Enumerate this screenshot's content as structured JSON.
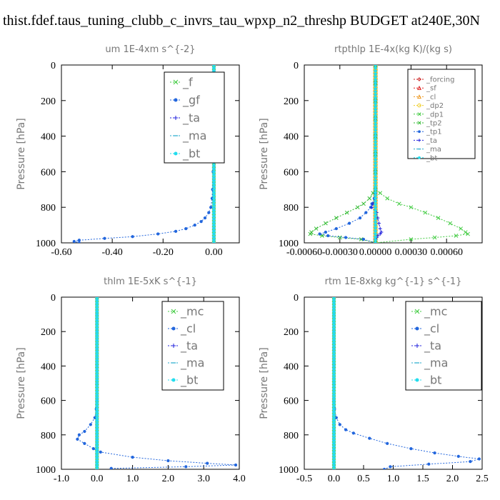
{
  "figure": {
    "title": "thist.fdef.taus_tuning_clubb_c_invrs_tau_wpxp_n2_threshp  BUDGET at240E,30N"
  },
  "chart_data": [
    {
      "type": "line",
      "title": "um  1E-4xm s^{-2}",
      "ylabel": "Pressure [hPa]",
      "xlabel": "",
      "xlim": [
        -0.6,
        0.1
      ],
      "ylim": [
        1000,
        0
      ],
      "xticks": [
        -0.6,
        -0.4,
        -0.2,
        0.0
      ],
      "xtick_labels": [
        "-0.60",
        "-0.40",
        "-0.20",
        "0.00"
      ],
      "yticks": [
        0,
        200,
        400,
        600,
        800,
        1000
      ],
      "legend_loc": "top-right",
      "y": [
        0,
        100,
        200,
        300,
        400,
        500,
        600,
        700,
        750,
        800,
        830,
        860,
        880,
        900,
        920,
        935,
        950,
        965,
        975,
        985,
        992,
        1000
      ],
      "series": [
        {
          "name": "_f",
          "color": "#44cc44",
          "marker": "x",
          "values": [
            0,
            0,
            0,
            0,
            0,
            0,
            0,
            0,
            0,
            0,
            0,
            0,
            0,
            0,
            0,
            0,
            0,
            0,
            0,
            0,
            0,
            0
          ]
        },
        {
          "name": "_gf",
          "color": "#2266dd",
          "marker": "dot",
          "values": [
            0,
            0,
            0,
            0,
            -0.001,
            -0.002,
            -0.003,
            -0.005,
            -0.007,
            -0.012,
            -0.02,
            -0.035,
            -0.05,
            -0.075,
            -0.11,
            -0.15,
            -0.22,
            -0.32,
            -0.43,
            -0.53,
            -0.55,
            -0.53
          ]
        },
        {
          "name": "_ta",
          "color": "#2222dd",
          "marker": "plus",
          "values": [
            0,
            0,
            0,
            0,
            0,
            0,
            0,
            0,
            0,
            0,
            0,
            0,
            0,
            0,
            0,
            0,
            0,
            0,
            0,
            0,
            0,
            0
          ]
        },
        {
          "name": "_ma",
          "color": "#22aacc",
          "marker": "dash",
          "values": [
            0,
            0,
            0,
            0,
            0,
            0,
            0,
            0,
            0,
            0,
            0,
            0,
            0,
            0,
            0,
            0,
            0,
            0,
            0,
            0,
            0,
            0
          ]
        },
        {
          "name": "_bt",
          "color": "#22ddee",
          "marker": "dot",
          "values": [
            0,
            0,
            0,
            0,
            0,
            0,
            0,
            0,
            0,
            0,
            0,
            0,
            0,
            0,
            0,
            0,
            0,
            0,
            0,
            0,
            0,
            0
          ]
        }
      ]
    },
    {
      "type": "line",
      "title": "rtpthlp  1E-4x(kg K)/(kg s)",
      "ylabel": "Pressure [hPa]",
      "xlabel": "",
      "xlim": [
        -0.0006,
        0.0009
      ],
      "ylim": [
        1000,
        0
      ],
      "xticks": [
        -0.0006,
        -0.0003,
        0.0,
        0.0003,
        0.0006
      ],
      "xtick_labels": [
        "-0.00060",
        "-0.00030",
        "0.00000",
        "0.00030",
        "0.00060"
      ],
      "yticks": [
        0,
        200,
        400,
        600,
        800,
        1000
      ],
      "legend_loc": "top-right",
      "y": [
        0,
        100,
        200,
        300,
        400,
        500,
        600,
        700,
        720,
        750,
        780,
        800,
        830,
        860,
        890,
        920,
        940,
        950,
        960,
        970,
        980,
        1000
      ],
      "series": [
        {
          "name": "_forcing",
          "color": "#cc2222",
          "marker": "diamond",
          "values": [
            0,
            0,
            0,
            0,
            0,
            0,
            0,
            0,
            0,
            0,
            0,
            0,
            0,
            0,
            0,
            0,
            0,
            0,
            0,
            0,
            0,
            0
          ]
        },
        {
          "name": "_sf",
          "color": "#dd2222",
          "marker": "tri",
          "values": [
            0,
            0,
            0,
            0,
            0,
            0,
            0,
            0,
            0,
            0,
            0,
            0,
            0,
            0,
            0,
            0,
            0,
            0,
            0,
            0,
            0,
            0
          ]
        },
        {
          "name": "_cl",
          "color": "#ee9922",
          "marker": "tri",
          "values": [
            0,
            0,
            0,
            0,
            0,
            0,
            0,
            0,
            0,
            0,
            0,
            0,
            0,
            0,
            0,
            0,
            0,
            0,
            0,
            0,
            0,
            0
          ]
        },
        {
          "name": "_dp2",
          "color": "#eecc22",
          "marker": "circle",
          "values": [
            0,
            0,
            0,
            0,
            0,
            0,
            0,
            0,
            0,
            0,
            0,
            0,
            0,
            0,
            0,
            0,
            0,
            0,
            0,
            0,
            0,
            0
          ]
        },
        {
          "name": "_dp1",
          "color": "#44cc44",
          "marker": "x",
          "values": [
            0,
            0,
            0,
            0,
            0,
            0,
            0,
            0,
            4e-05,
            0.0001,
            0.0002,
            0.0003,
            0.00042,
            0.00053,
            0.00063,
            0.00072,
            0.00076,
            0.00078,
            0.00068,
            0.0005,
            0.0003,
            0
          ]
        },
        {
          "name": "_tp2",
          "color": "#33bb33",
          "marker": "x",
          "values": [
            0,
            0,
            0,
            0,
            0,
            0,
            0,
            0,
            -2e-05,
            -5e-05,
            -0.0001,
            -0.00015,
            -0.00024,
            -0.00033,
            -0.00042,
            -0.0005,
            -0.00054,
            -0.00055,
            -0.00045,
            -0.0003,
            -0.00012,
            0
          ]
        },
        {
          "name": "_tp1",
          "color": "#2266dd",
          "marker": "dot",
          "values": [
            0,
            0,
            0,
            0,
            0,
            0,
            0,
            0,
            0,
            -1e-05,
            -3e-05,
            -4e-05,
            -8e-05,
            -0.00013,
            -0.00022,
            -0.00033,
            -0.00042,
            -0.00047,
            -0.0004,
            -0.00025,
            -0.0001,
            0
          ]
        },
        {
          "name": "_ta",
          "color": "#2222dd",
          "marker": "plus",
          "values": [
            0,
            0,
            0,
            0,
            0,
            0,
            0,
            0,
            0,
            0,
            -2e-05,
            -3e-05,
            1e-05,
            2e-05,
            3e-05,
            4e-05,
            5e-05,
            4e-05,
            2e-05,
            1e-05,
            0,
            0
          ]
        },
        {
          "name": "_ma",
          "color": "#22aacc",
          "marker": "dash",
          "values": [
            0,
            0,
            0,
            0,
            0,
            0,
            0,
            0,
            0,
            0,
            0,
            0,
            0,
            0,
            0,
            0,
            0,
            0,
            0,
            0,
            0,
            0
          ]
        },
        {
          "name": "_bt",
          "color": "#22ddee",
          "marker": "dot",
          "values": [
            0,
            0,
            0,
            0,
            0,
            0,
            0,
            0,
            0,
            0,
            0,
            0,
            0,
            0,
            0,
            0,
            0,
            0,
            0,
            0,
            0,
            0
          ]
        }
      ]
    },
    {
      "type": "line",
      "title": "thlm  1E-5xK s^{-1}",
      "ylabel": "Pressure [hPa]",
      "xlabel": "",
      "xlim": [
        -1.0,
        4.0
      ],
      "ylim": [
        1000,
        0
      ],
      "xticks": [
        -1.0,
        0.0,
        1.0,
        2.0,
        3.0,
        4.0
      ],
      "xtick_labels": [
        "-1.0",
        "0.0",
        "1.0",
        "2.0",
        "3.0",
        "4.0"
      ],
      "yticks": [
        0,
        200,
        400,
        600,
        800,
        1000
      ],
      "legend_loc": "top-right",
      "y": [
        0,
        100,
        200,
        300,
        400,
        500,
        600,
        650,
        700,
        740,
        780,
        800,
        825,
        850,
        880,
        900,
        930,
        950,
        965,
        975,
        985,
        995
      ],
      "series": [
        {
          "name": "_mc",
          "color": "#44cc44",
          "marker": "x",
          "values": [
            0,
            0,
            0,
            0,
            0,
            0,
            0,
            0,
            0,
            0,
            0,
            0,
            0,
            0,
            0,
            0,
            0,
            0,
            0,
            0,
            0,
            0
          ]
        },
        {
          "name": "_cl",
          "color": "#2266dd",
          "marker": "dot",
          "values": [
            0,
            0,
            0,
            0,
            0,
            0,
            0,
            -0.02,
            -0.06,
            -0.18,
            -0.35,
            -0.5,
            -0.55,
            -0.35,
            -0.1,
            0.1,
            1.0,
            2.0,
            3.1,
            3.9,
            2.5,
            0.4
          ]
        },
        {
          "name": "_ta",
          "color": "#2222dd",
          "marker": "plus",
          "values": [
            0,
            0,
            0,
            0,
            0,
            0,
            0,
            0,
            0,
            0,
            0,
            0,
            0,
            0,
            0,
            0,
            0,
            0,
            0,
            0,
            0,
            0
          ]
        },
        {
          "name": "_ma",
          "color": "#22aacc",
          "marker": "dash",
          "values": [
            0,
            0,
            0,
            0,
            0,
            0,
            0,
            0,
            0,
            0,
            0,
            0,
            0,
            0,
            0,
            0,
            0,
            0,
            0,
            0,
            0,
            0
          ]
        },
        {
          "name": "_bt",
          "color": "#22ddee",
          "marker": "dot",
          "values": [
            0,
            0,
            0,
            0,
            0,
            0,
            0,
            0,
            0,
            0,
            0,
            0,
            0,
            0,
            0,
            0,
            0,
            0,
            0,
            0,
            0,
            0
          ]
        }
      ]
    },
    {
      "type": "line",
      "title": "rtm  1E-8xkg kg^{-1} s^{-1}",
      "ylabel": "Pressure [hPa]",
      "xlabel": "",
      "xlim": [
        -0.5,
        2.5
      ],
      "ylim": [
        1000,
        0
      ],
      "xticks": [
        -0.5,
        0.0,
        0.5,
        1.0,
        1.5,
        2.0,
        2.5
      ],
      "xtick_labels": [
        "-0.5",
        "0.0",
        "0.5",
        "1.0",
        "1.5",
        "2.0",
        "2.5"
      ],
      "yticks": [
        0,
        200,
        400,
        600,
        800,
        1000
      ],
      "legend_loc": "top-right",
      "y": [
        0,
        100,
        200,
        300,
        400,
        500,
        600,
        650,
        700,
        740,
        770,
        790,
        820,
        850,
        880,
        905,
        925,
        940,
        955,
        970,
        985,
        1000
      ],
      "series": [
        {
          "name": "_mc",
          "color": "#44cc44",
          "marker": "x",
          "values": [
            0,
            0,
            0,
            0,
            0,
            0,
            0,
            0,
            0,
            0,
            0,
            0,
            0,
            0,
            0,
            0,
            0,
            0,
            0,
            0,
            0,
            0
          ]
        },
        {
          "name": "_cl",
          "color": "#2266dd",
          "marker": "dot",
          "values": [
            0,
            0,
            0,
            0,
            0,
            0,
            0,
            0.01,
            0.04,
            0.1,
            0.2,
            0.33,
            0.6,
            0.9,
            1.3,
            1.7,
            2.1,
            2.45,
            2.3,
            1.6,
            0.95,
            0.85
          ]
        },
        {
          "name": "_ta",
          "color": "#2222dd",
          "marker": "plus",
          "values": [
            0,
            0,
            0,
            0,
            0,
            0,
            0,
            0,
            0,
            0,
            0,
            0,
            0,
            0,
            0,
            0,
            0,
            0,
            0,
            0,
            0,
            0
          ]
        },
        {
          "name": "_ma",
          "color": "#22aacc",
          "marker": "dash",
          "values": [
            0,
            0,
            0,
            0,
            0,
            0,
            0,
            0,
            0,
            0,
            0,
            0,
            0,
            0,
            0,
            0,
            0,
            0,
            0,
            0,
            0,
            0
          ]
        },
        {
          "name": "_bt",
          "color": "#22ddee",
          "marker": "dot",
          "values": [
            0,
            0,
            0,
            0,
            0,
            0,
            0,
            0,
            0,
            0,
            0,
            0,
            0,
            0,
            0,
            0,
            0,
            0,
            0,
            0,
            0,
            0
          ]
        }
      ]
    }
  ]
}
